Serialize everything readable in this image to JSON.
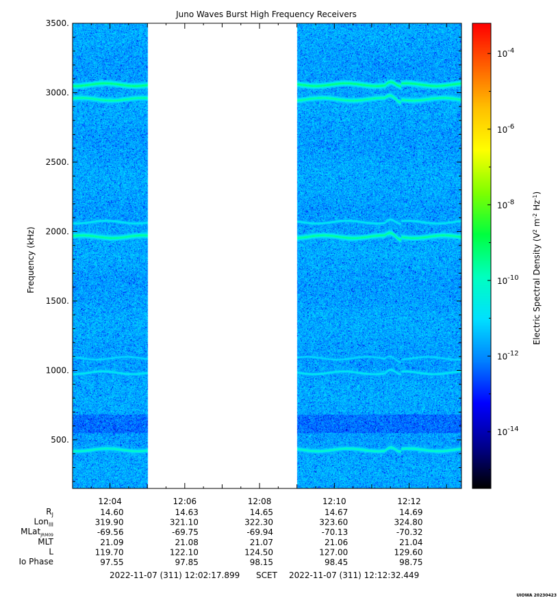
{
  "chart_data": {
    "type": "heatmap",
    "title": "Juno Waves Burst High Frequency Receivers",
    "ylabel": "Frequency (kHz)",
    "ylim": [
      150,
      3500
    ],
    "yticks": [
      "500.",
      "1000.",
      "1500.",
      "2000.",
      "2500.",
      "3000.",
      "3500."
    ],
    "xlim_minutes": [
      723.0,
      733.4
    ],
    "xticks": [
      "12:04",
      "12:06",
      "12:08",
      "12:10",
      "12:12"
    ],
    "xtick_minutes": [
      724,
      726,
      728,
      730,
      732
    ],
    "data_gap_minutes": [
      725.0,
      729.0
    ],
    "background_log_density": -11.7,
    "emission_bands": [
      {
        "frequency_khz": 3060,
        "log_density": -9.3
      },
      {
        "frequency_khz": 2955,
        "log_density": -9.6
      },
      {
        "frequency_khz": 2070,
        "log_density": -10.7
      },
      {
        "frequency_khz": 1965,
        "log_density": -9.5
      },
      {
        "frequency_khz": 1090,
        "log_density": -11.0
      },
      {
        "frequency_khz": 985,
        "log_density": -10.7
      },
      {
        "frequency_khz": 430,
        "log_density": -10.0
      }
    ],
    "colorbar": {
      "label": "Electric Spectral Density (V",
      "label_sup1": "2",
      "label_mid": " m",
      "label_sup2": "-2",
      "label_mid2": " Hz",
      "label_sup3": "-1",
      "label_end": ")",
      "log_min": -15.5,
      "log_max": -3.2,
      "tick_base": "10",
      "ticks": [
        "-4",
        "-6",
        "-8",
        "-10",
        "-12",
        "-14"
      ],
      "tick_values": [
        -4,
        -6,
        -8,
        -10,
        -12,
        -14
      ],
      "colors": [
        "#000000",
        "#00008f",
        "#0000ff",
        "#0080ff",
        "#00e0ff",
        "#00ffc0",
        "#00ff40",
        "#80ff00",
        "#ffff00",
        "#ffc000",
        "#ff6000",
        "#ff0000"
      ]
    },
    "ephemeris": {
      "rows": [
        {
          "label": "R",
          "sub": "J",
          "values": [
            "14.60",
            "14.63",
            "14.65",
            "14.67",
            "14.69"
          ]
        },
        {
          "label": "Lon",
          "sub": "III",
          "values": [
            "319.90",
            "321.10",
            "322.30",
            "323.60",
            "324.80"
          ]
        },
        {
          "label": "MLat",
          "sub": "JRM09",
          "values": [
            "-69.56",
            "-69.75",
            "-69.94",
            "-70.13",
            "-70.32"
          ]
        },
        {
          "label": "MLT",
          "sub": "",
          "values": [
            "21.09",
            "21.08",
            "21.07",
            "21.06",
            "21.04"
          ]
        },
        {
          "label": "L",
          "sub": "",
          "values": [
            "119.70",
            "122.10",
            "124.50",
            "127.00",
            "129.60"
          ]
        },
        {
          "label": "Io Phase",
          "sub": "",
          "values": [
            "97.55",
            "97.85",
            "98.15",
            "98.45",
            "98.75"
          ]
        }
      ]
    },
    "time_range": {
      "start": "2022-11-07 (311) 12:02:17.899",
      "label": "SCET",
      "end": "2022-11-07 (311) 12:12:32.449"
    },
    "credit": "UIOWA 20230423"
  }
}
